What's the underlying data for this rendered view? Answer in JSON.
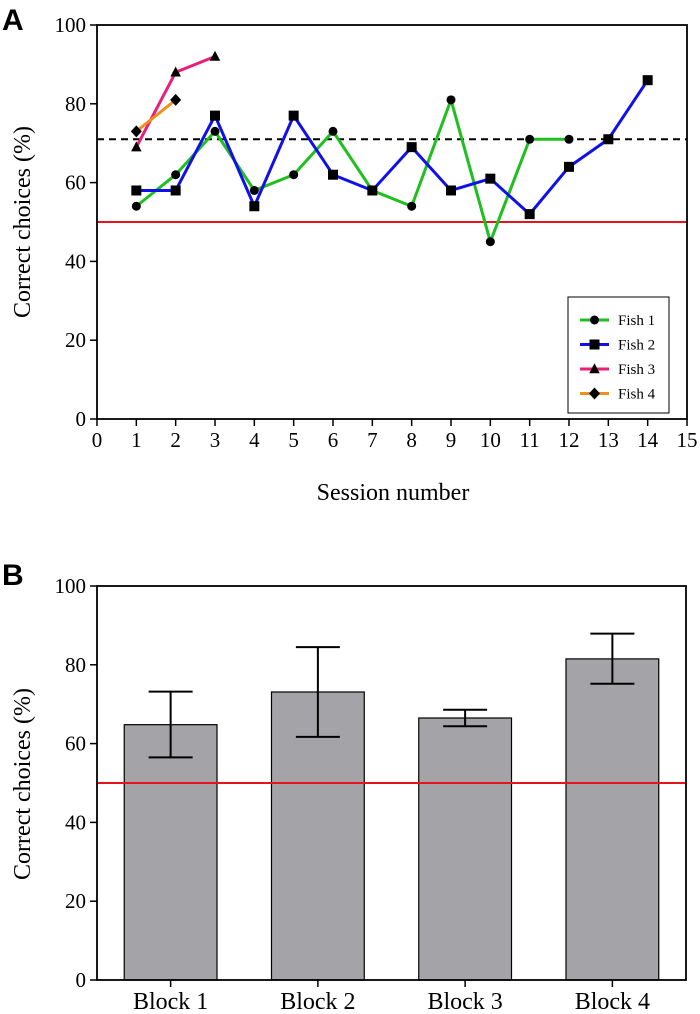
{
  "colors": {
    "fish1": "#1fbf1f",
    "fish2": "#1010e8",
    "fish3": "#e8207a",
    "fish4": "#f0901c",
    "chance": "#e8141c",
    "criterion": "#000000",
    "bar_fill": "#a4a4a8"
  },
  "chart_data": [
    {
      "panel": "A",
      "type": "line",
      "xlabel": "Session number",
      "ylabel": "Correct choices (%)",
      "xlim": [
        0,
        15
      ],
      "ylim": [
        0,
        100
      ],
      "x_ticks": [
        0,
        1,
        2,
        3,
        4,
        5,
        6,
        7,
        8,
        9,
        10,
        11,
        12,
        13,
        14,
        15
      ],
      "y_ticks": [
        0,
        20,
        40,
        60,
        80,
        100
      ],
      "legend_position": "bottom-right",
      "reference_lines": [
        {
          "name": "chance",
          "y": 50,
          "style": "solid",
          "color_key": "chance"
        },
        {
          "name": "criterion",
          "y": 71,
          "style": "dashed",
          "color_key": "criterion"
        }
      ],
      "series": [
        {
          "name": "Fish 1",
          "marker": "circle",
          "color_key": "fish1",
          "x": [
            1,
            2,
            3,
            4,
            5,
            6,
            7,
            8,
            9,
            10,
            11,
            12
          ],
          "values": [
            54,
            62,
            73,
            58,
            62,
            73,
            58,
            54,
            81,
            45,
            71,
            71
          ]
        },
        {
          "name": "Fish 2",
          "marker": "square",
          "color_key": "fish2",
          "x": [
            1,
            2,
            3,
            4,
            5,
            6,
            7,
            8,
            9,
            10,
            11,
            12,
            13,
            14
          ],
          "values": [
            58,
            58,
            77,
            54,
            77,
            62,
            58,
            69,
            58,
            61,
            52,
            64,
            71,
            86
          ]
        },
        {
          "name": "Fish 3",
          "marker": "triangle",
          "color_key": "fish3",
          "x": [
            1,
            2,
            3
          ],
          "values": [
            69,
            88,
            92
          ]
        },
        {
          "name": "Fish 4",
          "marker": "diamond",
          "color_key": "fish4",
          "x": [
            1,
            2
          ],
          "values": [
            73,
            81
          ]
        }
      ]
    },
    {
      "panel": "B",
      "type": "bar",
      "xlabel": "",
      "ylabel": "Correct choices (%)",
      "ylim": [
        0,
        100
      ],
      "y_ticks": [
        0,
        20,
        40,
        60,
        80,
        100
      ],
      "categories": [
        "Block 1",
        "Block 2",
        "Block 3",
        "Block 4"
      ],
      "values": [
        64.8,
        73.1,
        66.5,
        81.5
      ],
      "error_low": [
        56.5,
        61.7,
        64.4,
        75.2
      ],
      "error_high": [
        73.2,
        84.5,
        68.6,
        87.9
      ],
      "reference_lines": [
        {
          "name": "chance",
          "y": 50,
          "style": "solid",
          "color_key": "chance"
        }
      ]
    }
  ]
}
